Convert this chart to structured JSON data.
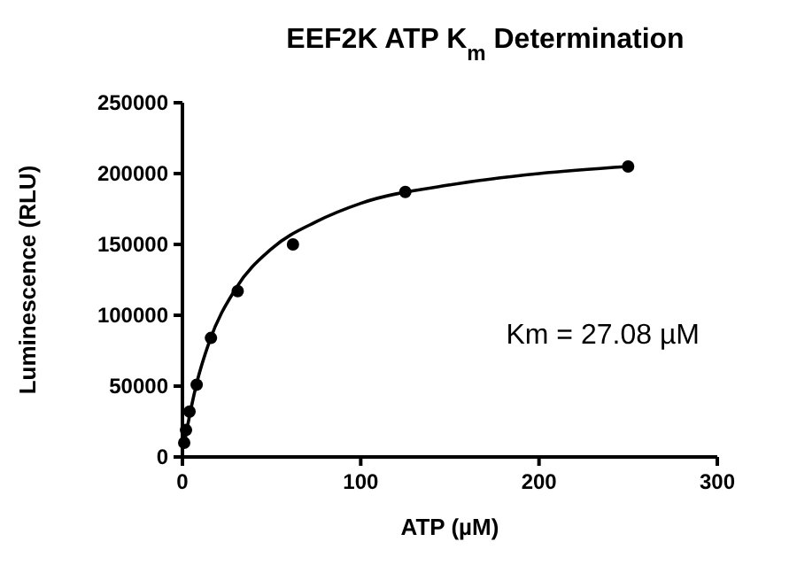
{
  "chart_data": {
    "type": "scatter",
    "title": "EEF2K ATP K$_{m}$ Determination",
    "xlabel": "ATP (µM)",
    "ylabel": "Luminescence (RLU)",
    "annotations": [
      "Km = 27.08 µM"
    ],
    "xlim": [
      0,
      300
    ],
    "xticks": [
      0,
      100,
      200,
      300
    ],
    "ylim": [
      0,
      250000
    ],
    "yticks": [
      0,
      50000,
      100000,
      150000,
      200000,
      250000
    ],
    "grid": false,
    "marker": "circle",
    "series": [
      {
        "color": "#000000",
        "x": [
          1,
          2,
          4,
          8,
          16,
          31,
          62,
          125,
          250
        ],
        "values": [
          10000,
          19000,
          32000,
          51000,
          84000,
          117000,
          150000,
          187000,
          205000
        ]
      },
      {
        "type": "line",
        "marker": "none",
        "color": "#000000",
        "x": [
          1,
          2,
          4,
          8,
          15,
          30,
          50,
          75,
          100,
          150,
          200,
          250
        ],
        "values": [
          8000,
          16000,
          29000,
          52000,
          81000,
          119000,
          147000,
          166000,
          179000,
          192000,
          200000,
          205000
        ]
      }
    ]
  }
}
